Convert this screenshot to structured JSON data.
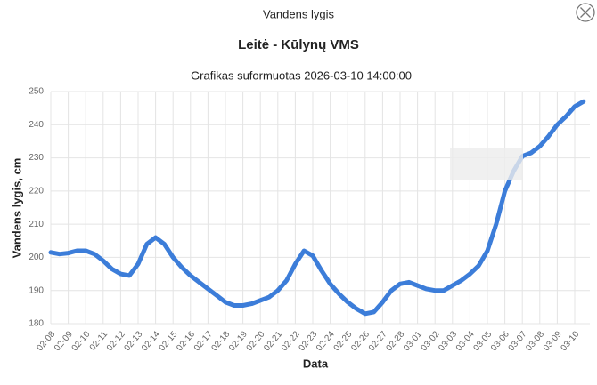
{
  "dialog": {
    "title": "Vandens lygis"
  },
  "chart_data": {
    "type": "line",
    "title": "Leitė - Kūlynų VMS",
    "subtitle": "Grafikas suformuotas 2026-03-10 14:00:00",
    "x_label": "Data",
    "y_label": "Vandens lygis, cm",
    "categories": [
      "02-08",
      null,
      "02-09",
      null,
      "02-10",
      null,
      "02-11",
      null,
      "02-12",
      null,
      "02-13",
      null,
      "02-14",
      null,
      "02-15",
      null,
      "02-16",
      null,
      "02-17",
      null,
      "02-18",
      null,
      "02-19",
      null,
      "02-20",
      null,
      "02-21",
      null,
      "02-22",
      null,
      "02-23",
      null,
      "02-24",
      null,
      "02-25",
      null,
      "02-26",
      null,
      "02-27",
      null,
      "02-28",
      null,
      "03-01",
      null,
      "03-02",
      null,
      "03-03",
      null,
      "03-04",
      null,
      "03-05",
      null,
      "03-06",
      null,
      "03-07",
      null,
      "03-08",
      null,
      "03-09",
      null,
      "03-10",
      null
    ],
    "series": [
      {
        "color": "#3c7dd9",
        "values": [
          201.5,
          201,
          201.3,
          202,
          202,
          201,
          199,
          196.5,
          195,
          194.5,
          198,
          204,
          206,
          204,
          200,
          197,
          194.5,
          192.5,
          190.5,
          188.5,
          186.5,
          185.5,
          185.5,
          186,
          187,
          188,
          190,
          193,
          198,
          202,
          200.5,
          196,
          192,
          189,
          186.5,
          184.5,
          183,
          183.5,
          186.5,
          190,
          192,
          192.5,
          191.5,
          190.5,
          190,
          190,
          191.5,
          193,
          195,
          197.5,
          202,
          210,
          220,
          226,
          230.5,
          231.5,
          233.5,
          236.5,
          240,
          242.5,
          245.5,
          247
        ]
      }
    ],
    "ylim": [
      180,
      250
    ],
    "yticks": [
      180,
      190,
      200,
      210,
      220,
      230,
      240,
      250
    ],
    "grid": true
  }
}
